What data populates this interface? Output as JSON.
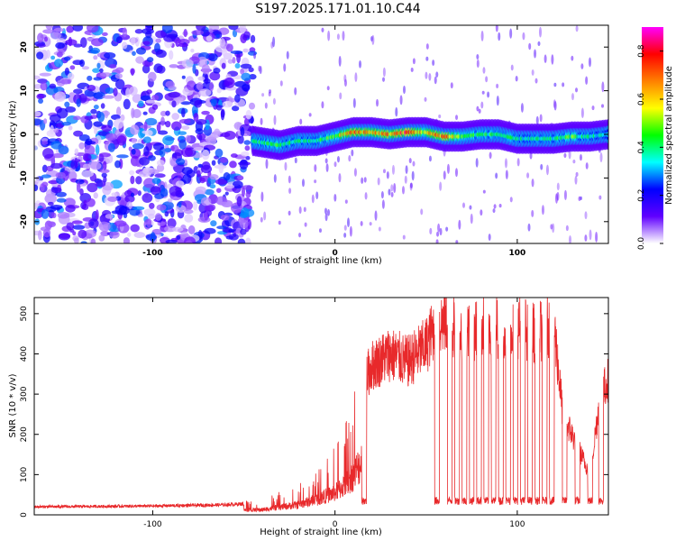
{
  "title": "S197.2025.171.01.10.C44",
  "chart_data": [
    {
      "type": "heatmap",
      "xlabel": "Height of straight line (km)",
      "ylabel": "Frequency (Hz)",
      "xlim": [
        -165,
        150
      ],
      "ylim": [
        -25,
        25
      ],
      "x_ticks": [
        -100,
        0,
        100
      ],
      "y_ticks": [
        -20,
        -10,
        0,
        10,
        20
      ],
      "colorbar": {
        "label": "Normalized spectral amplitude",
        "range": [
          0,
          0.9
        ],
        "ticks": [
          0.0,
          0.2,
          0.4,
          0.6,
          0.8
        ],
        "colors": [
          "#ffffff",
          "#6000ff",
          "#0000ff",
          "#00ffff",
          "#00ff00",
          "#ffff00",
          "#ff8000",
          "#ff0000",
          "#ff00ff"
        ]
      },
      "ridge": {
        "x": [
          -45,
          -30,
          -20,
          -10,
          0,
          10,
          20,
          30,
          40,
          50,
          60,
          70,
          80,
          90,
          100,
          110,
          120,
          130,
          140,
          150
        ],
        "y": [
          -1.5,
          -2.5,
          -1.5,
          -1.5,
          -0.5,
          0.5,
          0.5,
          0.0,
          0.5,
          0.5,
          -0.5,
          -0.5,
          0.0,
          0.0,
          -1.0,
          -1.0,
          -1.0,
          -0.5,
          -0.5,
          0.0
        ],
        "amplitude": [
          0.45,
          0.45,
          0.4,
          0.42,
          0.5,
          0.75,
          0.7,
          0.7,
          0.8,
          0.6,
          0.8,
          0.5,
          0.45,
          0.45,
          0.4,
          0.4,
          0.4,
          0.5,
          0.4,
          0.35
        ]
      },
      "noise_region_x": [
        -165,
        -45
      ]
    },
    {
      "type": "line",
      "xlabel": "Height of straight line (km)",
      "ylabel": "SNR (10 * v/v)",
      "xlim": [
        -165,
        150
      ],
      "ylim": [
        0,
        540
      ],
      "x_ticks": [
        -100,
        0,
        100
      ],
      "y_ticks": [
        0,
        100,
        200,
        300,
        400,
        500
      ],
      "color": "#e8292b",
      "envelope": {
        "x": [
          -165,
          -100,
          -60,
          -40,
          -30,
          -20,
          -10,
          0,
          5,
          10,
          15,
          20,
          30,
          40,
          50,
          55,
          60,
          70,
          80,
          90,
          100,
          110,
          120,
          125,
          130,
          140,
          145,
          150
        ],
        "y": [
          20,
          22,
          25,
          30,
          45,
          60,
          90,
          130,
          170,
          230,
          320,
          370,
          400,
          380,
          420,
          470,
          480,
          450,
          470,
          470,
          470,
          450,
          480,
          250,
          200,
          100,
          280,
          340
        ]
      },
      "dropouts": [
        16,
        56,
        63,
        67,
        71,
        75,
        79,
        83,
        87,
        91,
        95,
        99,
        103,
        107,
        111,
        115,
        119,
        126,
        133,
        140,
        146
      ],
      "dropout_level": 35
    }
  ]
}
